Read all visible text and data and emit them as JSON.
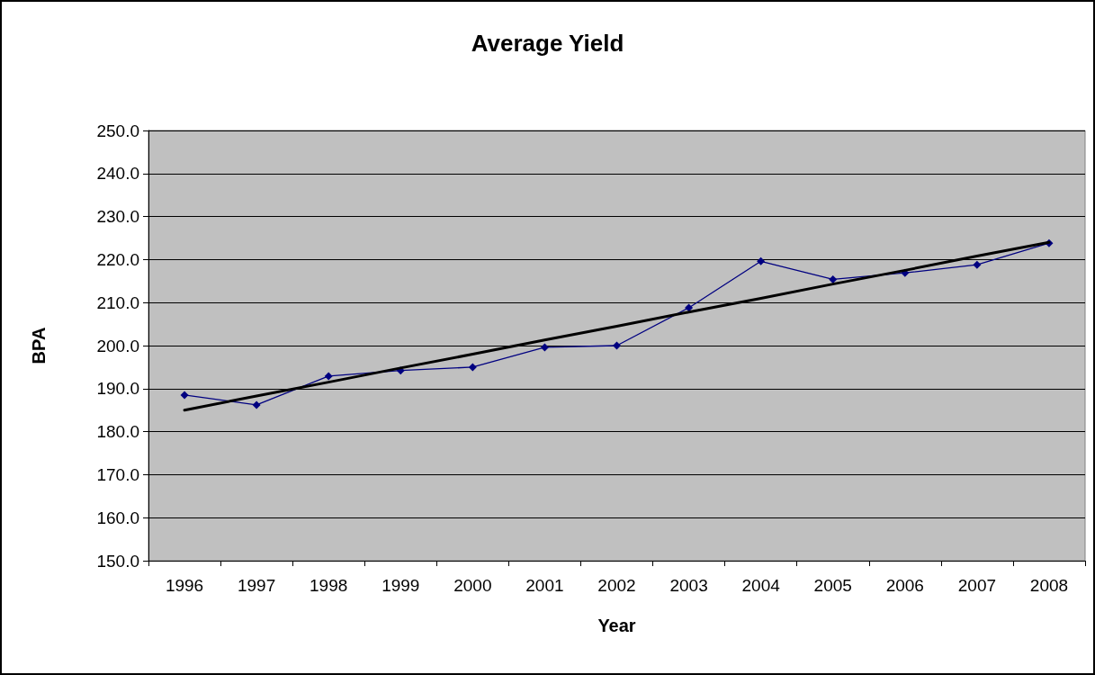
{
  "chart_data": {
    "type": "line",
    "title": "Average Yield",
    "xlabel": "Year",
    "ylabel": "BPA",
    "categories": [
      "1996",
      "1997",
      "1998",
      "1999",
      "2000",
      "2001",
      "2002",
      "2003",
      "2004",
      "2005",
      "2006",
      "2007",
      "2008"
    ],
    "series": [
      {
        "color": "#000080",
        "marker": "diamond",
        "values": [
          188.5,
          186.2,
          192.9,
          194.2,
          195.0,
          199.6,
          200.0,
          208.8,
          219.6,
          215.4,
          216.9,
          218.8,
          223.8
        ]
      },
      {
        "type": "line",
        "color": "#000000",
        "marker": "none",
        "values": [
          185.0,
          188.3,
          191.5,
          194.8,
          198.0,
          201.3,
          204.5,
          207.8,
          211.0,
          214.3,
          217.5,
          220.8,
          224.0
        ]
      }
    ],
    "ylim": [
      150,
      250
    ],
    "yticks": [
      {
        "value": 150,
        "label": "150.0"
      },
      {
        "value": 160,
        "label": "160.0"
      },
      {
        "value": 170,
        "label": "170.0"
      },
      {
        "value": 180,
        "label": "180.0"
      },
      {
        "value": 190,
        "label": "190.0"
      },
      {
        "value": 200,
        "label": "200.0"
      },
      {
        "value": 210,
        "label": "210.0"
      },
      {
        "value": 220,
        "label": "220.0"
      },
      {
        "value": 230,
        "label": "230.0"
      },
      {
        "value": 240,
        "label": "240.0"
      },
      {
        "value": 250,
        "label": "250.0"
      }
    ],
    "grid": "y"
  }
}
